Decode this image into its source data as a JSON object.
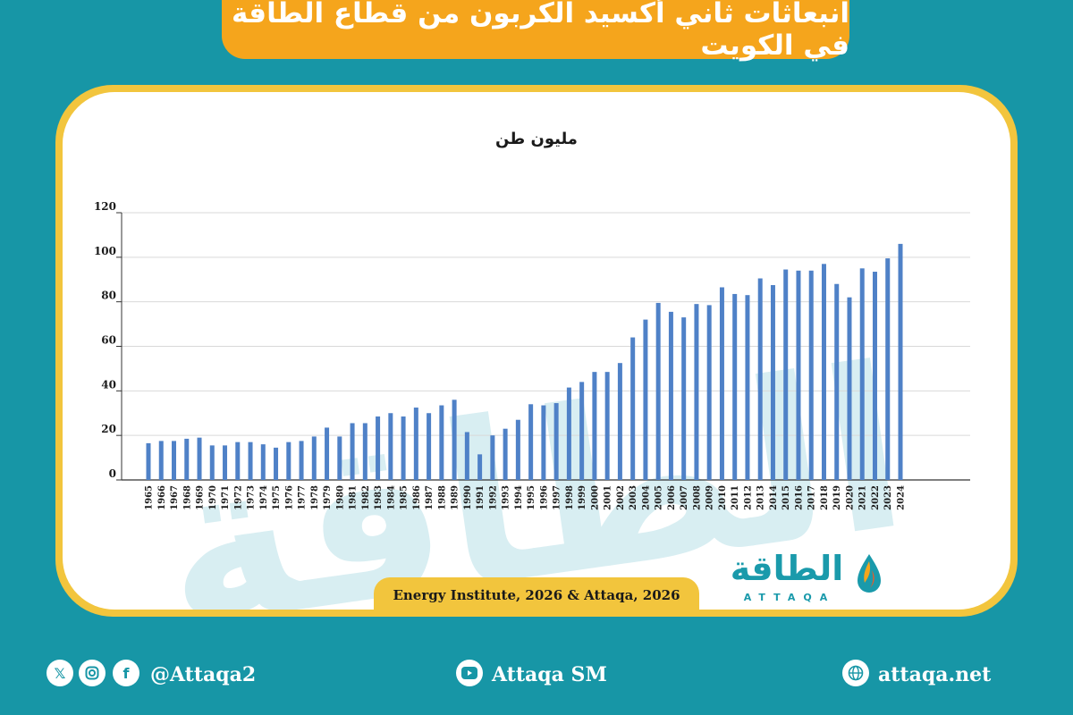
{
  "header": {
    "title": "انبعاثات ثاني أكسيد الكربون من قطاع الطاقة في الكويت"
  },
  "brand": {
    "name_ar": "الطاقة",
    "name_en": "ATTAQA",
    "watermark": "الطاقة"
  },
  "source": "Energy Institute, 2026 & Attaqa, 2026",
  "footer": {
    "social_handle": "@Attaqa2",
    "youtube_handle": "Attaqa SM",
    "website": "attaqa.net"
  },
  "colors": {
    "background": "#1796a6",
    "banner": "#f5a51c",
    "border": "#f2c53d",
    "bar": "#4f81c7"
  },
  "icons": [
    "x-icon",
    "instagram-icon",
    "facebook-icon",
    "youtube-icon",
    "globe-icon"
  ],
  "chart_data": {
    "type": "bar",
    "title": "",
    "ylabel": "مليون طن",
    "xlabel": "",
    "ylim": [
      0,
      120
    ],
    "yticks": [
      0,
      20,
      40,
      60,
      80,
      100,
      120
    ],
    "grid": true,
    "categories": [
      "1965",
      "1966",
      "1967",
      "1968",
      "1969",
      "1970",
      "1971",
      "1972",
      "1973",
      "1974",
      "1975",
      "1976",
      "1977",
      "1978",
      "1979",
      "1980",
      "1981",
      "1982",
      "1983",
      "1984",
      "1985",
      "1986",
      "1987",
      "1988",
      "1989",
      "1990",
      "1991",
      "1992",
      "1993",
      "1994",
      "1995",
      "1996",
      "1997",
      "1998",
      "1999",
      "2000",
      "2001",
      "2002",
      "2003",
      "2004",
      "2005",
      "2006",
      "2007",
      "2008",
      "2009",
      "2010",
      "2011",
      "2012",
      "2013",
      "2014",
      "2015",
      "2016",
      "2017",
      "2018",
      "2019",
      "2020",
      "2021",
      "2022",
      "2023",
      "2024"
    ],
    "values": [
      16.5,
      17.5,
      17.5,
      18.5,
      19,
      15.5,
      15.5,
      17,
      17,
      16,
      14.5,
      17,
      17.5,
      19.5,
      23.5,
      19.5,
      25.5,
      25.5,
      28.5,
      30,
      28.5,
      32.5,
      30,
      33.5,
      36,
      21.5,
      11.5,
      20,
      23,
      27,
      34,
      33.5,
      34.5,
      41.5,
      44,
      48.5,
      48.5,
      52.5,
      64,
      72,
      79.5,
      75.5,
      73,
      79,
      78.5,
      86.5,
      83.5,
      83,
      90.5,
      87.5,
      94.5,
      94,
      94,
      97,
      88,
      82,
      95,
      93.5,
      99.5,
      106
    ]
  }
}
